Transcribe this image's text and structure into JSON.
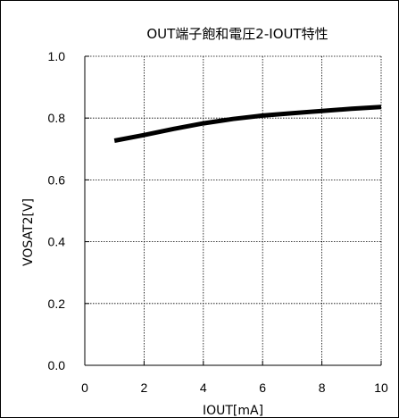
{
  "chart_data": {
    "type": "line",
    "title": "OUT端子飽和電圧2-IOUT特性",
    "xlabel": "IOUT[mA]",
    "ylabel": "VOSAT2[V]",
    "xlim": [
      0,
      10
    ],
    "ylim": [
      0.0,
      1.0
    ],
    "xticks": [
      0,
      2,
      4,
      6,
      8,
      10
    ],
    "xtick_labels": [
      "0",
      "2",
      "4",
      "6",
      "8",
      "10"
    ],
    "yticks": [
      0.0,
      0.2,
      0.4,
      0.6,
      0.8,
      1.0
    ],
    "ytick_labels": [
      "0.0",
      "0.2",
      "0.4",
      "0.6",
      "0.8",
      "1.0"
    ],
    "grid": true,
    "legend": "none",
    "series": [
      {
        "color": "#000000",
        "x": [
          1,
          2,
          3,
          4,
          5,
          6,
          7,
          8,
          9,
          10
        ],
        "y": [
          0.727,
          0.745,
          0.765,
          0.783,
          0.797,
          0.808,
          0.816,
          0.823,
          0.83,
          0.836
        ]
      }
    ]
  }
}
